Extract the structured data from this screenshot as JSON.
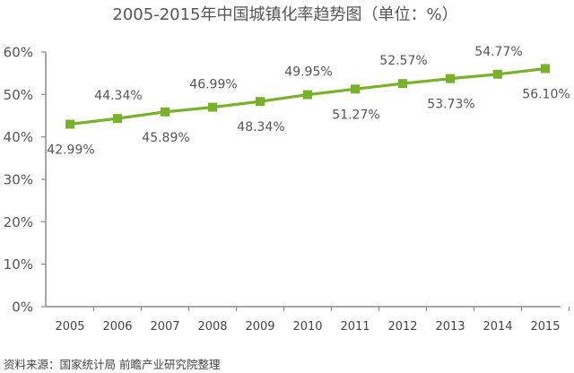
{
  "chart_data": {
    "type": "line",
    "title": "2005-2015年中国城镇化率趋势图（单位：%）",
    "source": "资料来源：国家统计局 前瞻产业研究院整理",
    "x": [
      "2005",
      "2006",
      "2007",
      "2008",
      "2009",
      "2010",
      "2011",
      "2012",
      "2013",
      "2014",
      "2015"
    ],
    "series": [
      {
        "values": [
          42.99,
          44.34,
          45.89,
          46.99,
          48.34,
          49.95,
          51.27,
          52.57,
          53.73,
          54.77,
          56.1
        ],
        "labels": [
          "42.99%",
          "44.34%",
          "45.89%",
          "46.99%",
          "48.34%",
          "49.95%",
          "51.27%",
          "52.57%",
          "53.73%",
          "54.77%",
          "56.10%"
        ],
        "color": "#77b22a"
      }
    ],
    "ylim": [
      0,
      60
    ],
    "yticks": [
      0,
      10,
      20,
      30,
      40,
      50,
      60
    ],
    "ytick_labels": [
      "0%",
      "10%",
      "20%",
      "30%",
      "40%",
      "50%",
      "60%"
    ],
    "axis_color": "#8a8a8a",
    "grid": false,
    "xlabel": "",
    "ylabel": ""
  }
}
